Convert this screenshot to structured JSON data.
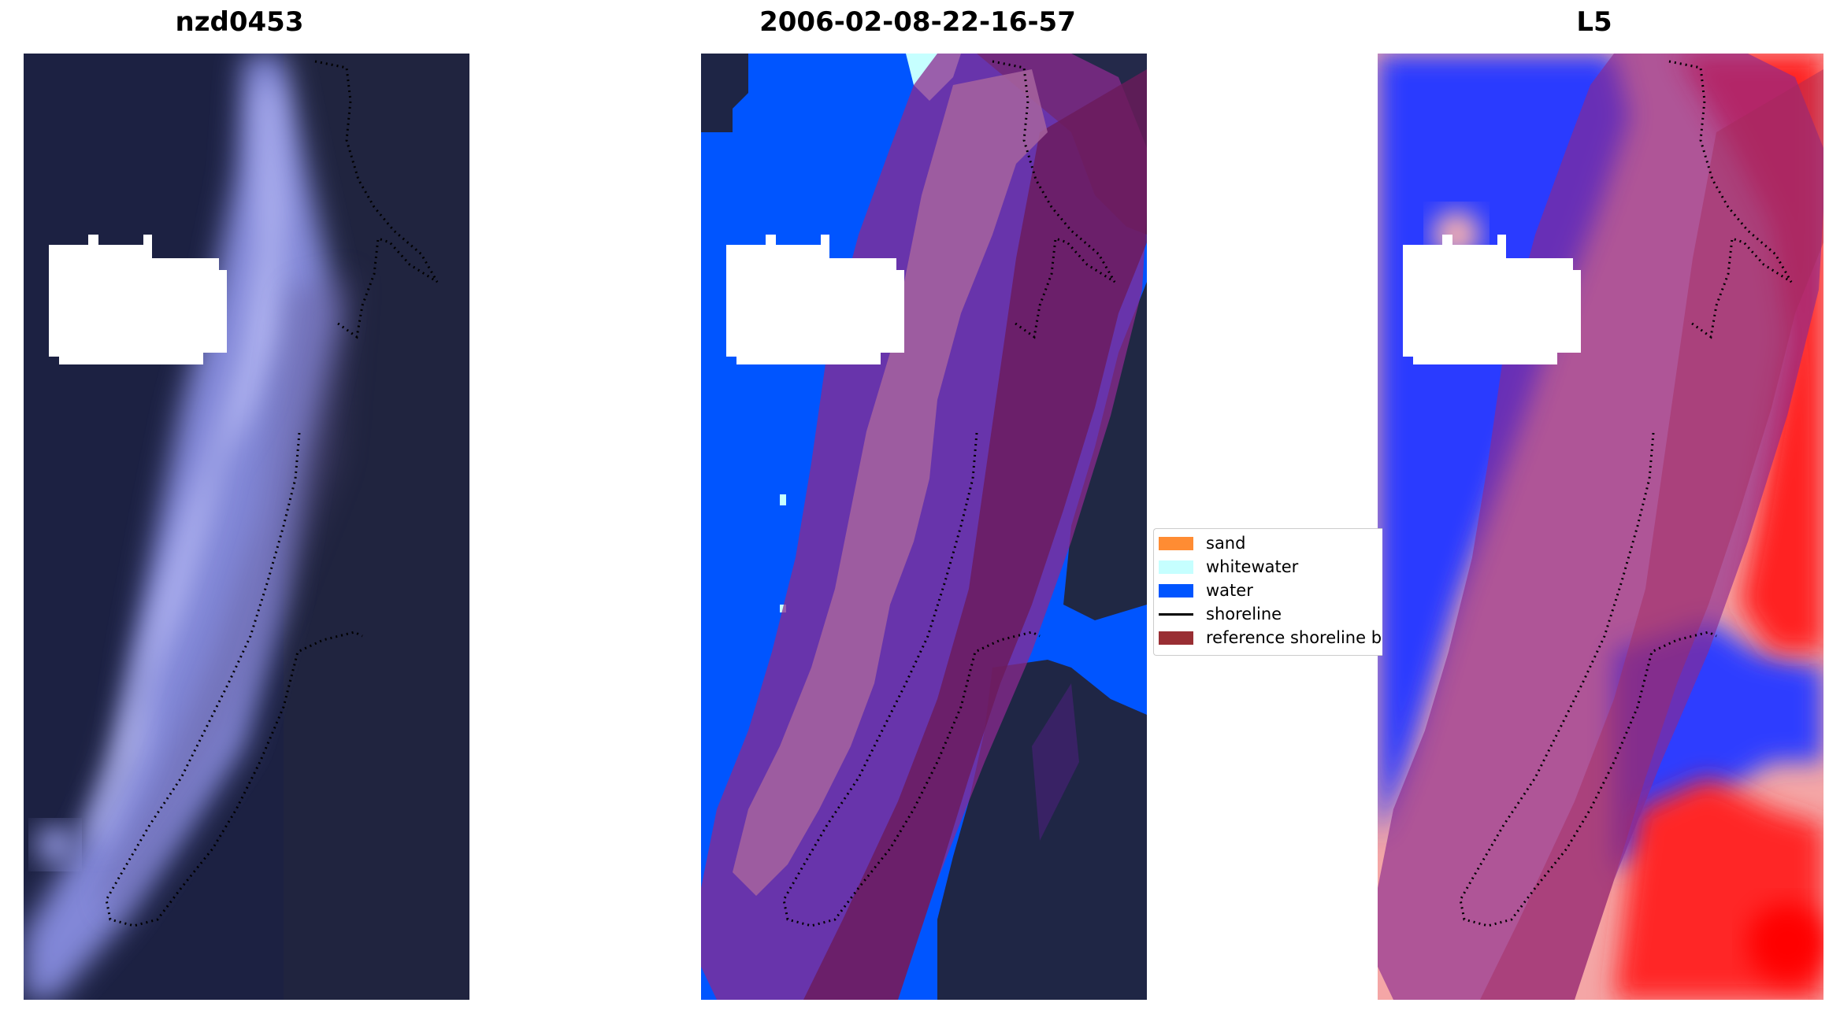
{
  "panels": [
    {
      "title": "nzd0453"
    },
    {
      "title": "2006-02-08-22-16-57"
    },
    {
      "title": "L5"
    }
  ],
  "legend": {
    "items": [
      {
        "label": "sand",
        "color": "#ff8c33"
      },
      {
        "label": "whitewater",
        "color": "#c6ffff"
      },
      {
        "label": "water",
        "color": "#0055ff"
      },
      {
        "label": "shoreline",
        "color": "#000000"
      },
      {
        "label": "reference shoreline buffer",
        "color": "#992e33"
      }
    ]
  },
  "colors": {
    "dark_background": "#1c2142",
    "cloud_mask": "#ffffff",
    "buffer_overlay": "#8b2a8f",
    "class_water": "#0055ff",
    "index_positive": "#ff1a1a",
    "index_negative": "#1a2aff"
  }
}
